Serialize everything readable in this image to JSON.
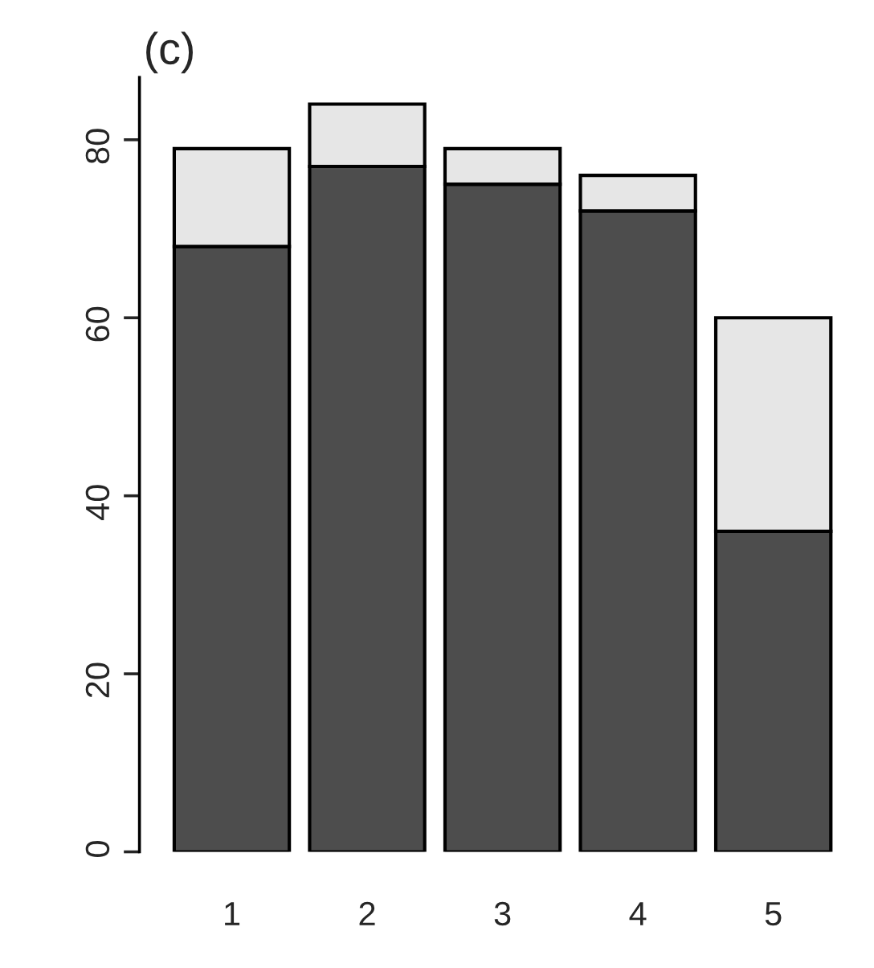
{
  "chart_data": {
    "type": "bar",
    "title": "(c)",
    "stacked": true,
    "categories": [
      "1",
      "2",
      "3",
      "4",
      "5"
    ],
    "series": [
      {
        "color": "#4d4d4d",
        "values": [
          68,
          77,
          75,
          72,
          36
        ]
      },
      {
        "color": "#e6e6e6",
        "values": [
          11,
          7,
          4,
          4,
          24
        ]
      }
    ],
    "ylim": [
      0,
      87
    ],
    "yticks": [
      0,
      20,
      40,
      60,
      80
    ],
    "grid": false,
    "legend": false
  }
}
